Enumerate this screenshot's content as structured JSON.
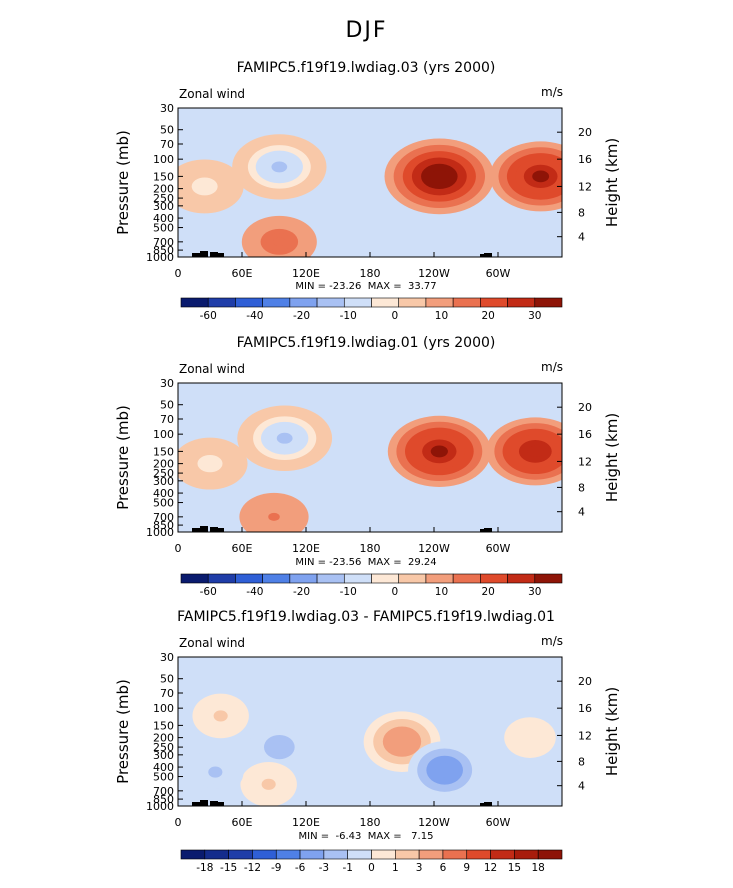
{
  "figure_title": "DJF",
  "chart_data": [
    {
      "type": "heatmap",
      "title": "FAMIPC5.f19f19.lwdiag.03 (yrs 2000)",
      "left_label": "Zonal wind",
      "units": "m/s",
      "ylabel": "Pressure (mb)",
      "right_label": "Height (km)",
      "x_ticks": [
        "0",
        "60E",
        "120E",
        "180",
        "120W",
        "60W"
      ],
      "y_ticks": [
        "30",
        "50",
        "70",
        "100",
        "150",
        "200",
        "250",
        "300",
        "400",
        "500",
        "700",
        "850",
        "1000"
      ],
      "height_ticks": [
        "20",
        "16",
        "12",
        "8",
        "4"
      ],
      "stats": "MIN = -23.26  MAX =  33.77",
      "colorbar_ticks": [
        "-60",
        "-40",
        "-20",
        "-10",
        "0",
        "10",
        "20",
        "30"
      ],
      "colorbar_colors": [
        "#0a1b6e",
        "#1f3da8",
        "#2f5fd6",
        "#4f80e6",
        "#7fa2ef",
        "#a9c1f3",
        "#cfdff8",
        "#fde8d6",
        "#f8c8a8",
        "#f29e7c",
        "#ea7150",
        "#df4a2b",
        "#c22b16",
        "#8e1407"
      ],
      "features": [
        {
          "lon": 245,
          "plev": 150,
          "value": 33.77
        },
        {
          "lon": 340,
          "plev": 150,
          "value": 28
        },
        {
          "lon": 95,
          "plev": 120,
          "value": -23.26
        },
        {
          "lon": 25,
          "plev": 190,
          "value": -12
        },
        {
          "lon": 95,
          "plev": 700,
          "value": 10
        }
      ]
    },
    {
      "type": "heatmap",
      "title": "FAMIPC5.f19f19.lwdiag.01 (yrs 2000)",
      "left_label": "Zonal wind",
      "units": "m/s",
      "ylabel": "Pressure (mb)",
      "right_label": "Height (km)",
      "x_ticks": [
        "0",
        "60E",
        "120E",
        "180",
        "120W",
        "60W"
      ],
      "y_ticks": [
        "30",
        "50",
        "70",
        "100",
        "150",
        "200",
        "250",
        "300",
        "400",
        "500",
        "700",
        "850",
        "1000"
      ],
      "height_ticks": [
        "20",
        "16",
        "12",
        "8",
        "4"
      ],
      "stats": "MIN = -23.56  MAX =  29.24",
      "colorbar_ticks": [
        "-60",
        "-40",
        "-20",
        "-10",
        "0",
        "10",
        "20",
        "30"
      ],
      "colorbar_colors": [
        "#0a1b6e",
        "#1f3da8",
        "#2f5fd6",
        "#4f80e6",
        "#7fa2ef",
        "#a9c1f3",
        "#cfdff8",
        "#fde8d6",
        "#f8c8a8",
        "#f29e7c",
        "#ea7150",
        "#df4a2b",
        "#c22b16",
        "#8e1407"
      ],
      "features": [
        {
          "lon": 245,
          "plev": 150,
          "value": 29.24
        },
        {
          "lon": 335,
          "plev": 150,
          "value": 26
        },
        {
          "lon": 100,
          "plev": 110,
          "value": -23.56
        },
        {
          "lon": 30,
          "plev": 200,
          "value": -10
        },
        {
          "lon": 90,
          "plev": 700,
          "value": 6
        }
      ]
    },
    {
      "type": "heatmap",
      "title": "FAMIPC5.f19f19.lwdiag.03 - FAMIPC5.f19f19.lwdiag.01",
      "left_label": "Zonal wind",
      "units": "m/s",
      "ylabel": "Pressure (mb)",
      "right_label": "Height (km)",
      "x_ticks": [
        "0",
        "60E",
        "120E",
        "180",
        "120W",
        "60W"
      ],
      "y_ticks": [
        "30",
        "50",
        "70",
        "100",
        "150",
        "200",
        "250",
        "300",
        "400",
        "500",
        "700",
        "850",
        "1000"
      ],
      "height_ticks": [
        "20",
        "16",
        "12",
        "8",
        "4"
      ],
      "stats": "MIN =  -6.43  MAX =   7.15",
      "colorbar_ticks": [
        "-18",
        "-15",
        "-12",
        "-9",
        "-6",
        "-3",
        "-1",
        "0",
        "1",
        "3",
        "6",
        "9",
        "12",
        "15",
        "18"
      ],
      "colorbar_colors": [
        "#0a1b6e",
        "#142c8c",
        "#1f3da8",
        "#2f5fd6",
        "#4f80e6",
        "#7fa2ef",
        "#a9c1f3",
        "#cfdff8",
        "#fde8d6",
        "#f8c8a8",
        "#f29e7c",
        "#ea7150",
        "#df4a2b",
        "#c22b16",
        "#a81c0c",
        "#8e1407"
      ],
      "features": [
        {
          "lon": 210,
          "plev": 220,
          "value": 7.15
        },
        {
          "lon": 250,
          "plev": 430,
          "value": -6.43
        },
        {
          "lon": 95,
          "plev": 250,
          "value": -4
        },
        {
          "lon": 40,
          "plev": 120,
          "value": 3
        },
        {
          "lon": 85,
          "plev": 600,
          "value": 3
        },
        {
          "lon": 330,
          "plev": 200,
          "value": 2
        },
        {
          "lon": 35,
          "plev": 450,
          "value": -3
        }
      ]
    }
  ]
}
